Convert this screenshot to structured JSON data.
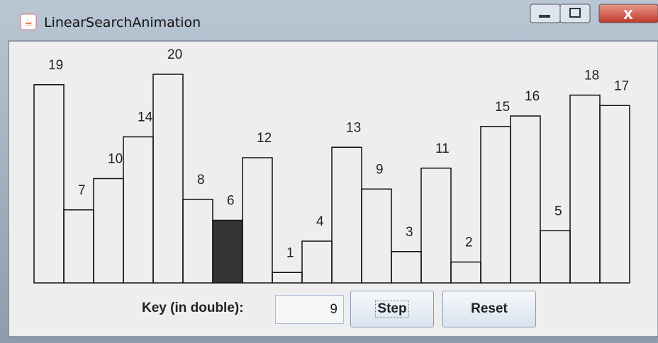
{
  "window": {
    "title": "LinearSearchAnimation"
  },
  "bars": {
    "values": [
      19,
      7,
      10,
      14,
      20,
      8,
      6,
      12,
      1,
      4,
      13,
      9,
      3,
      11,
      2,
      15,
      16,
      5,
      18,
      17
    ],
    "highlight_index": 6,
    "highlight_color": "#333333"
  },
  "controls": {
    "key_label": "Key (in double):",
    "key_value": 9,
    "step_button": "Step",
    "reset_button": "Reset"
  }
}
